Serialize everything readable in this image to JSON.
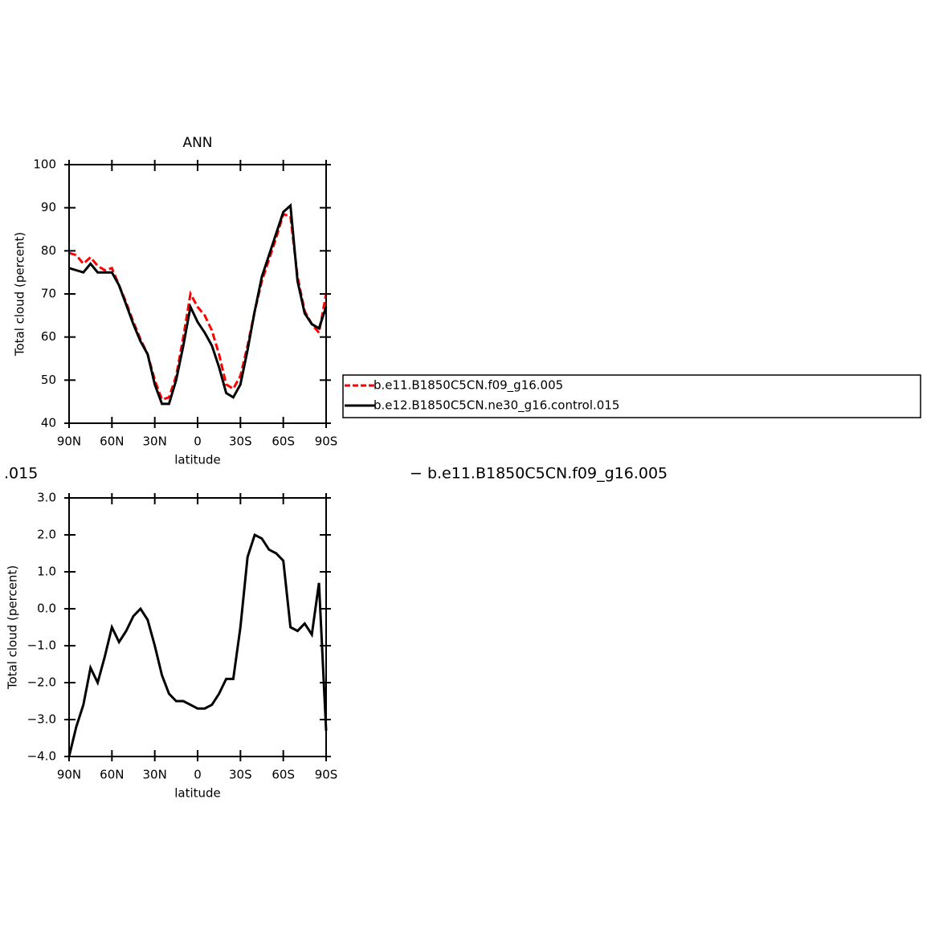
{
  "chart_data": [
    {
      "type": "line",
      "title": "ANN",
      "xlabel": "latitude",
      "ylabel": "Total cloud (percent)",
      "x": [
        90,
        85,
        80,
        75,
        70,
        65,
        60,
        55,
        50,
        45,
        40,
        35,
        30,
        25,
        20,
        15,
        10,
        5,
        0,
        -5,
        -10,
        -15,
        -20,
        -25,
        -30,
        -35,
        -40,
        -45,
        -50,
        -55,
        -60,
        -65,
        -70,
        -75,
        -80,
        -85,
        -90
      ],
      "series": [
        {
          "name": "b.e11.B1850C5CN.f09_g16.005",
          "color": "#ff0000",
          "line_style": "dashed",
          "values": [
            79.5,
            79,
            77,
            78.5,
            76.5,
            75.5,
            76,
            72,
            68,
            63.5,
            59.5,
            56,
            50,
            45.5,
            46,
            51,
            60,
            70,
            67,
            65,
            61.5,
            56,
            49,
            48,
            51,
            58,
            66,
            73,
            78,
            83,
            88.5,
            88,
            74,
            66,
            63,
            61,
            70
          ]
        },
        {
          "name": "b.e12.B1850C5CN.ne30_g16.control.015",
          "color": "#000000",
          "line_style": "solid",
          "values": [
            76,
            75.5,
            75,
            77,
            75,
            75,
            75,
            72,
            67.5,
            63,
            59,
            56,
            49,
            44.5,
            44.5,
            50,
            58,
            67,
            63.5,
            61,
            58,
            53,
            47,
            46,
            49,
            57,
            66,
            74,
            79,
            84,
            89,
            90.5,
            73,
            65.5,
            63,
            62,
            67
          ]
        }
      ],
      "xlim": [
        90,
        -90
      ],
      "xticks": [
        {
          "value": 90,
          "label": "90N"
        },
        {
          "value": 60,
          "label": "60N"
        },
        {
          "value": 30,
          "label": "30N"
        },
        0,
        {
          "value": -30,
          "label": "30S"
        },
        {
          "value": -60,
          "label": "60S"
        },
        {
          "value": -90,
          "label": "90S"
        }
      ],
      "ylim": [
        40,
        100
      ],
      "yticks": [
        40,
        50,
        60,
        70,
        80,
        90,
        100
      ],
      "legend": "right"
    },
    {
      "type": "line",
      "title_left": ".015",
      "title_right": "− b.e11.B1850C5CN.f09_g16.005",
      "xlabel": "latitude",
      "ylabel": "Total cloud (percent)",
      "x": [
        90,
        85,
        80,
        75,
        70,
        65,
        60,
        55,
        50,
        45,
        40,
        35,
        30,
        25,
        20,
        15,
        10,
        5,
        0,
        -5,
        -10,
        -15,
        -20,
        -25,
        -30,
        -35,
        -40,
        -45,
        -50,
        -55,
        -60,
        -65,
        -70,
        -75,
        -80,
        -85,
        -90
      ],
      "series": [
        {
          "color": "#000000",
          "line_style": "solid",
          "values": [
            -4.0,
            -3.2,
            -2.6,
            -1.6,
            -2.0,
            -1.3,
            -0.5,
            -0.9,
            -0.6,
            -0.2,
            0.0,
            -0.3,
            -1.0,
            -1.8,
            -2.3,
            -2.5,
            -2.5,
            -2.6,
            -2.7,
            -2.7,
            -2.6,
            -2.3,
            -1.9,
            -1.9,
            -0.5,
            1.4,
            2.0,
            1.9,
            1.6,
            1.5,
            1.3,
            -0.5,
            -0.6,
            -0.4,
            -0.7,
            0.7,
            -3.3
          ]
        }
      ],
      "xlim": [
        90,
        -90
      ],
      "xticks": [
        {
          "value": 90,
          "label": "90N"
        },
        {
          "value": 60,
          "label": "60N"
        },
        {
          "value": 30,
          "label": "30N"
        },
        0,
        {
          "value": -30,
          "label": "30S"
        },
        {
          "value": -60,
          "label": "60S"
        },
        {
          "value": -90,
          "label": "90S"
        }
      ],
      "ylim": [
        -4,
        3
      ],
      "yticks": [
        {
          "value": -4,
          "label": "−4.0"
        },
        {
          "value": -3,
          "label": "−3.0"
        },
        {
          "value": -2,
          "label": "−2.0"
        },
        {
          "value": -1,
          "label": "−1.0"
        },
        {
          "value": 0,
          "label": "0.0"
        },
        {
          "value": 1,
          "label": "1.0"
        },
        {
          "value": 2,
          "label": "2.0"
        },
        {
          "value": 3,
          "label": "3.0"
        }
      ]
    }
  ]
}
